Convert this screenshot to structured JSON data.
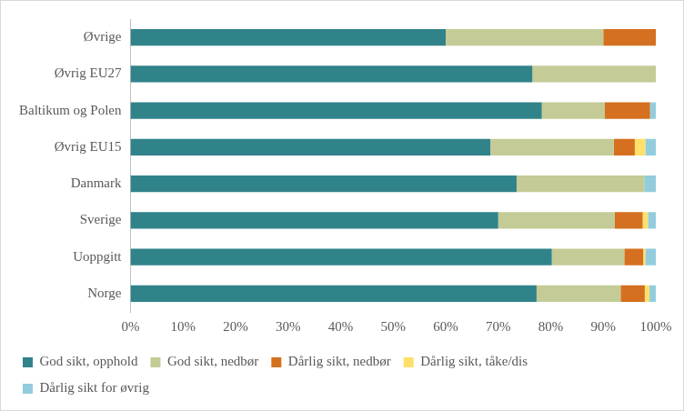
{
  "chart_data": {
    "type": "bar",
    "orientation": "horizontal",
    "stacked": true,
    "grid": false,
    "legend": "bottom",
    "categories": [
      "Øvrige",
      "Øvrig EU27",
      "Baltikum og Polen",
      "Øvrig EU15",
      "Danmark",
      "Sverige",
      "Uoppgitt",
      "Norge"
    ],
    "series": [
      {
        "name": "God sikt, opphold",
        "color": "#31838a",
        "values": [
          60,
          76.5,
          78.3,
          68.5,
          73.5,
          70,
          80.2,
          77.3
        ]
      },
      {
        "name": "God sikt, nedbør",
        "color": "#c4cb96",
        "values": [
          30,
          23.5,
          12,
          23.5,
          24.3,
          22.2,
          13.8,
          16
        ]
      },
      {
        "name": "Dårlig sikt, nedbør",
        "color": "#d4701f",
        "values": [
          10,
          0,
          8.6,
          4,
          0,
          5.3,
          3.6,
          4.6
        ]
      },
      {
        "name": "Dårlig sikt, tåke/dis",
        "color": "#ffe06a",
        "values": [
          0,
          0,
          0,
          2,
          0,
          1,
          0.4,
          0.9
        ]
      },
      {
        "name": "Dårlig sikt for øvrig",
        "color": "#93cddd",
        "values": [
          0,
          0,
          1.1,
          2,
          2.2,
          1.5,
          2,
          1.2
        ]
      }
    ],
    "xlim": [
      0,
      100
    ],
    "xticks": [
      {
        "value": 0,
        "label": "0%"
      },
      {
        "value": 10,
        "label": "10%"
      },
      {
        "value": 20,
        "label": "20%"
      },
      {
        "value": 30,
        "label": "30%"
      },
      {
        "value": 40,
        "label": "40%"
      },
      {
        "value": 50,
        "label": "50%"
      },
      {
        "value": 60,
        "label": "60%"
      },
      {
        "value": 70,
        "label": "70%"
      },
      {
        "value": 80,
        "label": "80%"
      },
      {
        "value": 90,
        "label": "90%"
      },
      {
        "value": 100,
        "label": "100%"
      }
    ]
  }
}
